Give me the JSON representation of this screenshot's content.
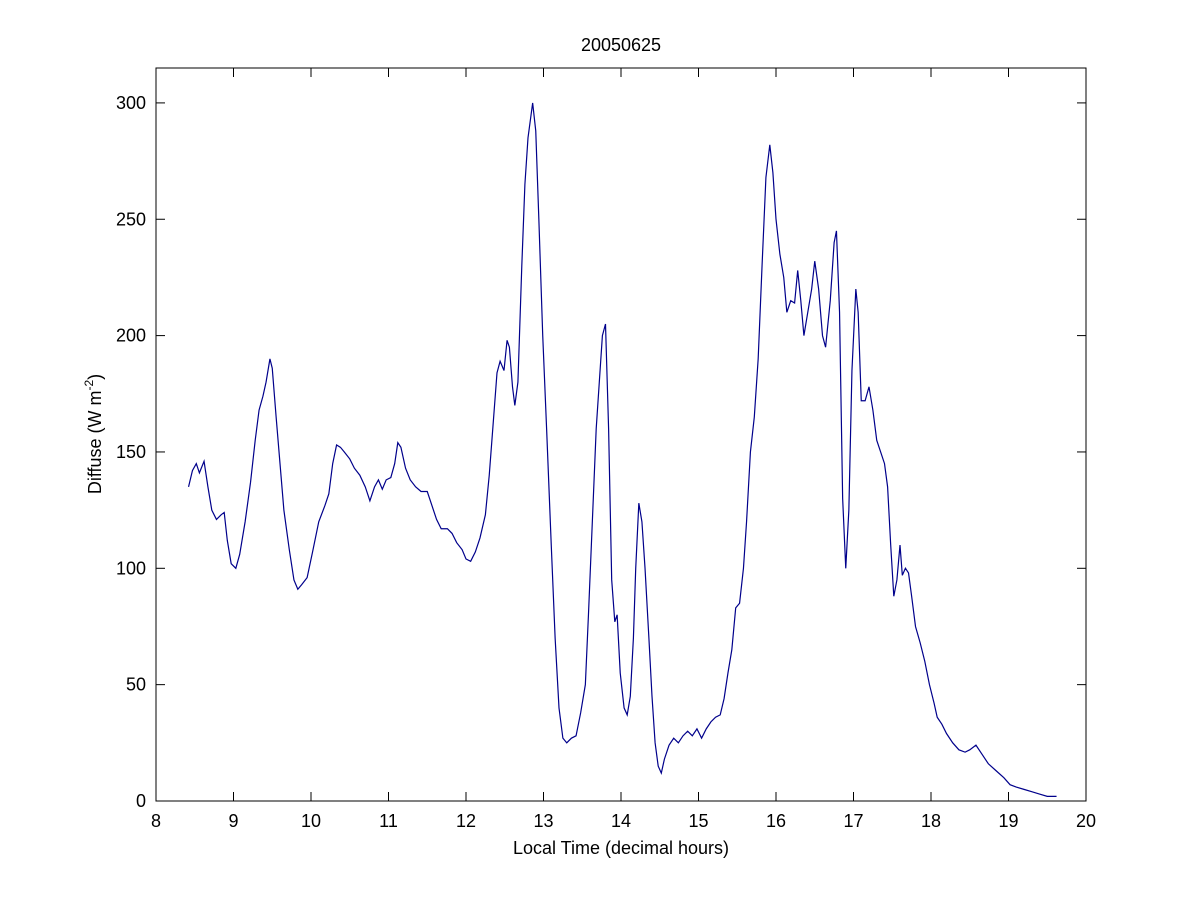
{
  "chart_data": {
    "type": "line",
    "title": "20050625",
    "xlabel": "Local Time (decimal hours)",
    "ylabel": [
      "Diffuse (W m",
      "-2",
      ")"
    ],
    "xlim": [
      8,
      20
    ],
    "ylim": [
      0,
      315
    ],
    "xticks": [
      8,
      9,
      10,
      11,
      12,
      13,
      14,
      15,
      16,
      17,
      18,
      19,
      20
    ],
    "yticks": [
      0,
      50,
      100,
      150,
      200,
      250,
      300
    ],
    "x": [
      8.42,
      8.47,
      8.52,
      8.56,
      8.62,
      8.67,
      8.72,
      8.78,
      8.84,
      8.88,
      8.92,
      8.97,
      9.03,
      9.08,
      9.15,
      9.22,
      9.28,
      9.33,
      9.38,
      9.42,
      9.47,
      9.5,
      9.55,
      9.6,
      9.65,
      9.72,
      9.78,
      9.83,
      9.88,
      9.95,
      10.02,
      10.1,
      10.18,
      10.23,
      10.28,
      10.33,
      10.38,
      10.43,
      10.5,
      10.56,
      10.63,
      10.7,
      10.76,
      10.82,
      10.87,
      10.92,
      10.97,
      11.03,
      11.08,
      11.12,
      11.16,
      11.22,
      11.28,
      11.35,
      11.42,
      11.5,
      11.56,
      11.62,
      11.68,
      11.76,
      11.82,
      11.88,
      11.95,
      12.0,
      12.06,
      12.12,
      12.18,
      12.25,
      12.3,
      12.35,
      12.4,
      12.44,
      12.49,
      12.53,
      12.56,
      12.6,
      12.63,
      12.67,
      12.72,
      12.76,
      12.8,
      12.86,
      12.9,
      12.94,
      12.99,
      13.04,
      13.1,
      13.15,
      13.2,
      13.25,
      13.3,
      13.36,
      13.42,
      13.48,
      13.54,
      13.58,
      13.63,
      13.68,
      13.72,
      13.76,
      13.8,
      13.84,
      13.88,
      13.92,
      13.95,
      13.99,
      14.04,
      14.08,
      14.12,
      14.16,
      14.19,
      14.23,
      14.27,
      14.31,
      14.36,
      14.4,
      14.44,
      14.48,
      14.52,
      14.56,
      14.62,
      14.68,
      14.74,
      14.8,
      14.86,
      14.92,
      14.98,
      15.04,
      15.1,
      15.16,
      15.22,
      15.28,
      15.33,
      15.38,
      15.43,
      15.48,
      15.53,
      15.58,
      15.62,
      15.67,
      15.72,
      15.77,
      15.82,
      15.87,
      15.92,
      15.96,
      16.0,
      16.05,
      16.1,
      16.14,
      16.19,
      16.24,
      16.28,
      16.32,
      16.36,
      16.41,
      16.46,
      16.5,
      16.55,
      16.6,
      16.64,
      16.7,
      16.75,
      16.78,
      16.82,
      16.86,
      16.9,
      16.94,
      16.98,
      17.03,
      17.06,
      17.1,
      17.15,
      17.2,
      17.25,
      17.3,
      17.35,
      17.4,
      17.44,
      17.48,
      17.52,
      17.56,
      17.6,
      17.63,
      17.67,
      17.71,
      17.75,
      17.8,
      17.86,
      17.92,
      17.98,
      18.04,
      18.08,
      18.14,
      18.2,
      18.28,
      18.36,
      18.44,
      18.5,
      18.58,
      18.66,
      18.74,
      18.84,
      18.94,
      19.02,
      19.1,
      19.2,
      19.3,
      19.4,
      19.5,
      19.62
    ],
    "series": [
      {
        "color": "#00008b",
        "values": [
          135,
          142,
          145,
          141,
          146,
          135,
          125,
          121,
          123,
          124,
          112,
          102,
          100,
          106,
          120,
          137,
          155,
          168,
          174,
          180,
          190,
          186,
          165,
          145,
          125,
          108,
          95,
          91,
          93,
          96,
          107,
          120,
          127,
          132,
          145,
          153,
          152,
          150,
          147,
          143,
          140,
          135,
          129,
          135,
          138,
          134,
          138,
          139,
          145,
          154,
          152,
          143,
          138,
          135,
          133,
          133,
          127,
          121,
          117,
          117,
          115,
          111,
          108,
          104,
          103,
          107,
          113,
          123,
          140,
          162,
          184,
          189,
          185,
          198,
          195,
          178,
          170,
          180,
          230,
          265,
          285,
          300,
          288,
          250,
          200,
          160,
          110,
          70,
          40,
          27,
          25,
          27,
          28,
          38,
          50,
          80,
          120,
          160,
          180,
          200,
          205,
          160,
          95,
          77,
          80,
          55,
          40,
          37,
          45,
          70,
          100,
          128,
          120,
          100,
          70,
          45,
          25,
          15,
          12,
          18,
          24,
          27,
          25,
          28,
          30,
          28,
          31,
          27,
          31,
          34,
          36,
          37,
          44,
          55,
          65,
          83,
          85,
          100,
          120,
          150,
          165,
          190,
          230,
          268,
          282,
          270,
          250,
          235,
          225,
          210,
          215,
          214,
          228,
          215,
          200,
          210,
          220,
          232,
          220,
          200,
          195,
          215,
          240,
          245,
          210,
          130,
          100,
          125,
          185,
          220,
          210,
          172,
          172,
          178,
          168,
          155,
          150,
          145,
          135,
          110,
          88,
          95,
          110,
          97,
          100,
          98,
          88,
          75,
          68,
          60,
          50,
          42,
          36,
          33,
          29,
          25,
          22,
          21,
          22,
          24,
          20,
          16,
          13,
          10,
          7,
          6,
          5,
          4,
          3,
          2,
          2
        ]
      }
    ]
  }
}
